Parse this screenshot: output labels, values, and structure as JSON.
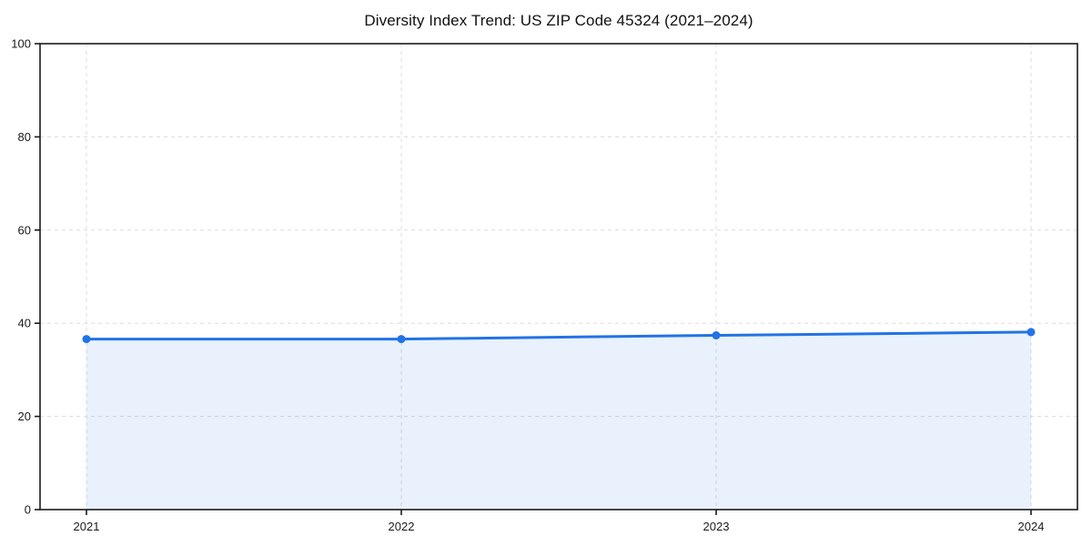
{
  "chart_data": {
    "type": "area",
    "title": "Diversity Index Trend: US ZIP Code 45324 (2021–2024)",
    "series_name": "Diversity Index",
    "categories": [
      "2021",
      "2022",
      "2023",
      "2024"
    ],
    "values": [
      36.6,
      36.6,
      37.4,
      38.1
    ],
    "xlabel": "",
    "ylabel": "",
    "ylim": [
      0,
      100
    ],
    "yticks": [
      0,
      20,
      40,
      60,
      80,
      100
    ],
    "xticks": [
      "2021",
      "2022",
      "2023",
      "2024"
    ],
    "grid": true,
    "grid_style": "dashed",
    "legend": "none",
    "colors": {
      "line": "#2273e6",
      "marker": "#2273e6",
      "fill": "rgba(34,115,230,0.10)",
      "grid": "#dcdcdc",
      "spine": "#1a1a1a",
      "tick_label": "#1a1a1a",
      "title": "#111111",
      "background": "#ffffff"
    }
  }
}
